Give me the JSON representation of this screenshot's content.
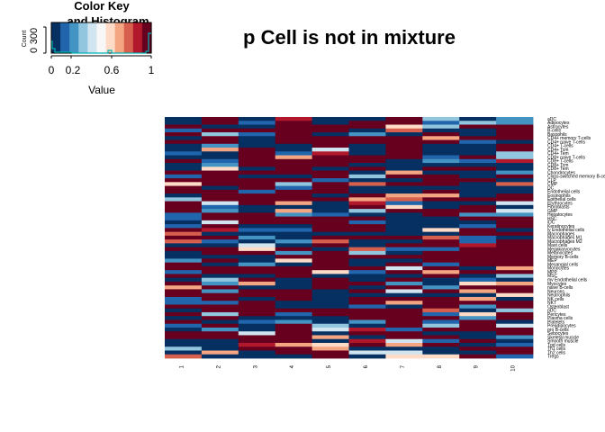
{
  "page_title": "p Cell is not in mixture",
  "color_key": {
    "title_line1": "Color Key",
    "title_line2": "and Histogram",
    "ylabel": "Count",
    "xlabel": "Value",
    "y_ticks": [
      "0",
      "300"
    ],
    "x_ticks": [
      "0",
      "0.2",
      "0.6",
      "1"
    ],
    "histogram_color": "#00b2b2"
  },
  "chart_data": {
    "type": "heatmap",
    "title": "p Cell is not in mixture",
    "value_range": [
      0,
      1
    ],
    "palette": [
      "#053061",
      "#2166ac",
      "#4393c3",
      "#92c5de",
      "#d1e5f0",
      "#f7f7f7",
      "#fddbc7",
      "#f4a582",
      "#d6604d",
      "#b2182b",
      "#67001f"
    ],
    "columns": [
      "1",
      "2",
      "3",
      "4",
      "5",
      "6",
      "7",
      "8",
      "9",
      "10"
    ],
    "rows": [
      "aDC",
      "Adipocytes",
      "Astrocytes",
      "B-cells",
      "Basophils",
      "CD4+ memory T-cells",
      "CD4+ naive T-cells",
      "CD4+ T-cells",
      "CD4+ Tcm",
      "CD4+ Tem",
      "CD8+ naive T-cells",
      "CD8+ T-cells",
      "CD8+ Tcm",
      "CD8+ Tem",
      "Chondrocytes",
      "Class-switched memory B-cells",
      "CLP",
      "CMP",
      "DC",
      "Endothelial cells",
      "Eosinophils",
      "Epithelial cells",
      "Erythrocytes",
      "Fibroblasts",
      "GMP",
      "Hepatocytes",
      "HSC",
      "iDC",
      "Keratinocytes",
      "ly Endothelial cells",
      "Macrophages",
      "Macrophages M1",
      "Macrophages M2",
      "Mast cells",
      "Megakaryocytes",
      "Melanocytes",
      "Memory B-cells",
      "MEP",
      "Mesangial cells",
      "Monocytes",
      "MPP",
      "MSC",
      "mv Endothelial cells",
      "Myocytes",
      "naive B-cells",
      "Neurons",
      "Neutrophils",
      "NK cells",
      "NKT",
      "Osteoblast",
      "pDC",
      "Pericytes",
      "Plasma cells",
      "Platelets",
      "Preadipocytes",
      "pro B-cells",
      "Sebocytes",
      "Skeletal muscle",
      "Smooth muscle",
      "Tgd cells",
      "Th1 cells",
      "Th2 cells",
      "Tregs"
    ]
  }
}
